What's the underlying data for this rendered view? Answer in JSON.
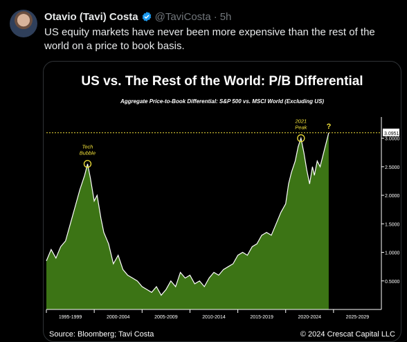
{
  "tweet": {
    "author_name": "Otavio (Tavi) Costa",
    "handle": "@TaviCosta",
    "separator": "·",
    "time": "5h",
    "text": "US equity markets have never been more expensive than the rest of the world on a price to book basis."
  },
  "colors": {
    "accent": "#1d9bf0",
    "fill": "#3f7a16",
    "line": "#ffffff",
    "annotation": "#f4e33a"
  },
  "chart_data": {
    "type": "area",
    "title": "US vs. The Rest of the World: P/B Differential",
    "subtitle": "Aggregate Price-to-Book Differential: S&P 500 vs. MSCI World (Excluding US)",
    "xlabel": "",
    "ylabel": "",
    "x_ticks": [
      "1995-1999",
      "2000-2004",
      "2005-2009",
      "2010-2014",
      "2015-2019",
      "2020-2024",
      "2025-2029"
    ],
    "y_ticks": [
      "0.5000",
      "1.0000",
      "1.5000",
      "2.0000",
      "2.5000",
      "3.0000"
    ],
    "xlim": [
      1995,
      2030
    ],
    "ylim": [
      0,
      3.25
    ],
    "current_value_label": "3.0951",
    "x": [
      1995.0,
      1995.5,
      1996.0,
      1996.5,
      1997.0,
      1997.5,
      1998.0,
      1998.5,
      1999.0,
      1999.3,
      1999.6,
      2000.0,
      2000.3,
      2000.7,
      2001.0,
      2001.5,
      2002.0,
      2002.5,
      2003.0,
      2003.5,
      2004.0,
      2004.5,
      2005.0,
      2005.5,
      2006.0,
      2006.5,
      2007.0,
      2007.5,
      2008.0,
      2008.5,
      2009.0,
      2009.5,
      2010.0,
      2010.5,
      2011.0,
      2011.5,
      2012.0,
      2012.5,
      2013.0,
      2013.5,
      2014.0,
      2014.5,
      2015.0,
      2015.5,
      2016.0,
      2016.5,
      2017.0,
      2017.5,
      2018.0,
      2018.5,
      2019.0,
      2019.5,
      2020.0,
      2020.3,
      2020.6,
      2021.0,
      2021.3,
      2021.6,
      2021.9,
      2022.2,
      2022.5,
      2022.8,
      2023.0,
      2023.3,
      2023.6,
      2023.9,
      2024.2,
      2024.5
    ],
    "values": [
      0.85,
      1.05,
      0.9,
      1.1,
      1.2,
      1.5,
      1.8,
      2.1,
      2.35,
      2.55,
      2.3,
      1.9,
      2.0,
      1.6,
      1.35,
      1.15,
      0.8,
      0.95,
      0.7,
      0.6,
      0.55,
      0.5,
      0.4,
      0.35,
      0.3,
      0.4,
      0.25,
      0.35,
      0.5,
      0.4,
      0.65,
      0.55,
      0.6,
      0.45,
      0.5,
      0.4,
      0.55,
      0.65,
      0.6,
      0.7,
      0.75,
      0.8,
      0.95,
      1.0,
      0.95,
      1.1,
      1.15,
      1.3,
      1.35,
      1.3,
      1.5,
      1.7,
      1.85,
      2.2,
      2.4,
      2.6,
      2.85,
      3.0,
      2.75,
      2.45,
      2.2,
      2.5,
      2.35,
      2.6,
      2.5,
      2.7,
      2.9,
      3.0951
    ],
    "annotations": [
      {
        "text_lines": [
          "Tech",
          "Bubble"
        ],
        "x": 1999.3,
        "y": 2.55
      },
      {
        "text_lines": [
          "2021",
          "Peak"
        ],
        "x": 2021.6,
        "y": 3.0
      },
      {
        "text_lines": [
          "?"
        ],
        "x": 2024.5,
        "y": 3.0951
      }
    ],
    "source": "Source: Bloomberg; Tavi Costa",
    "copyright": "© 2024 Crescat Capital LLC"
  }
}
